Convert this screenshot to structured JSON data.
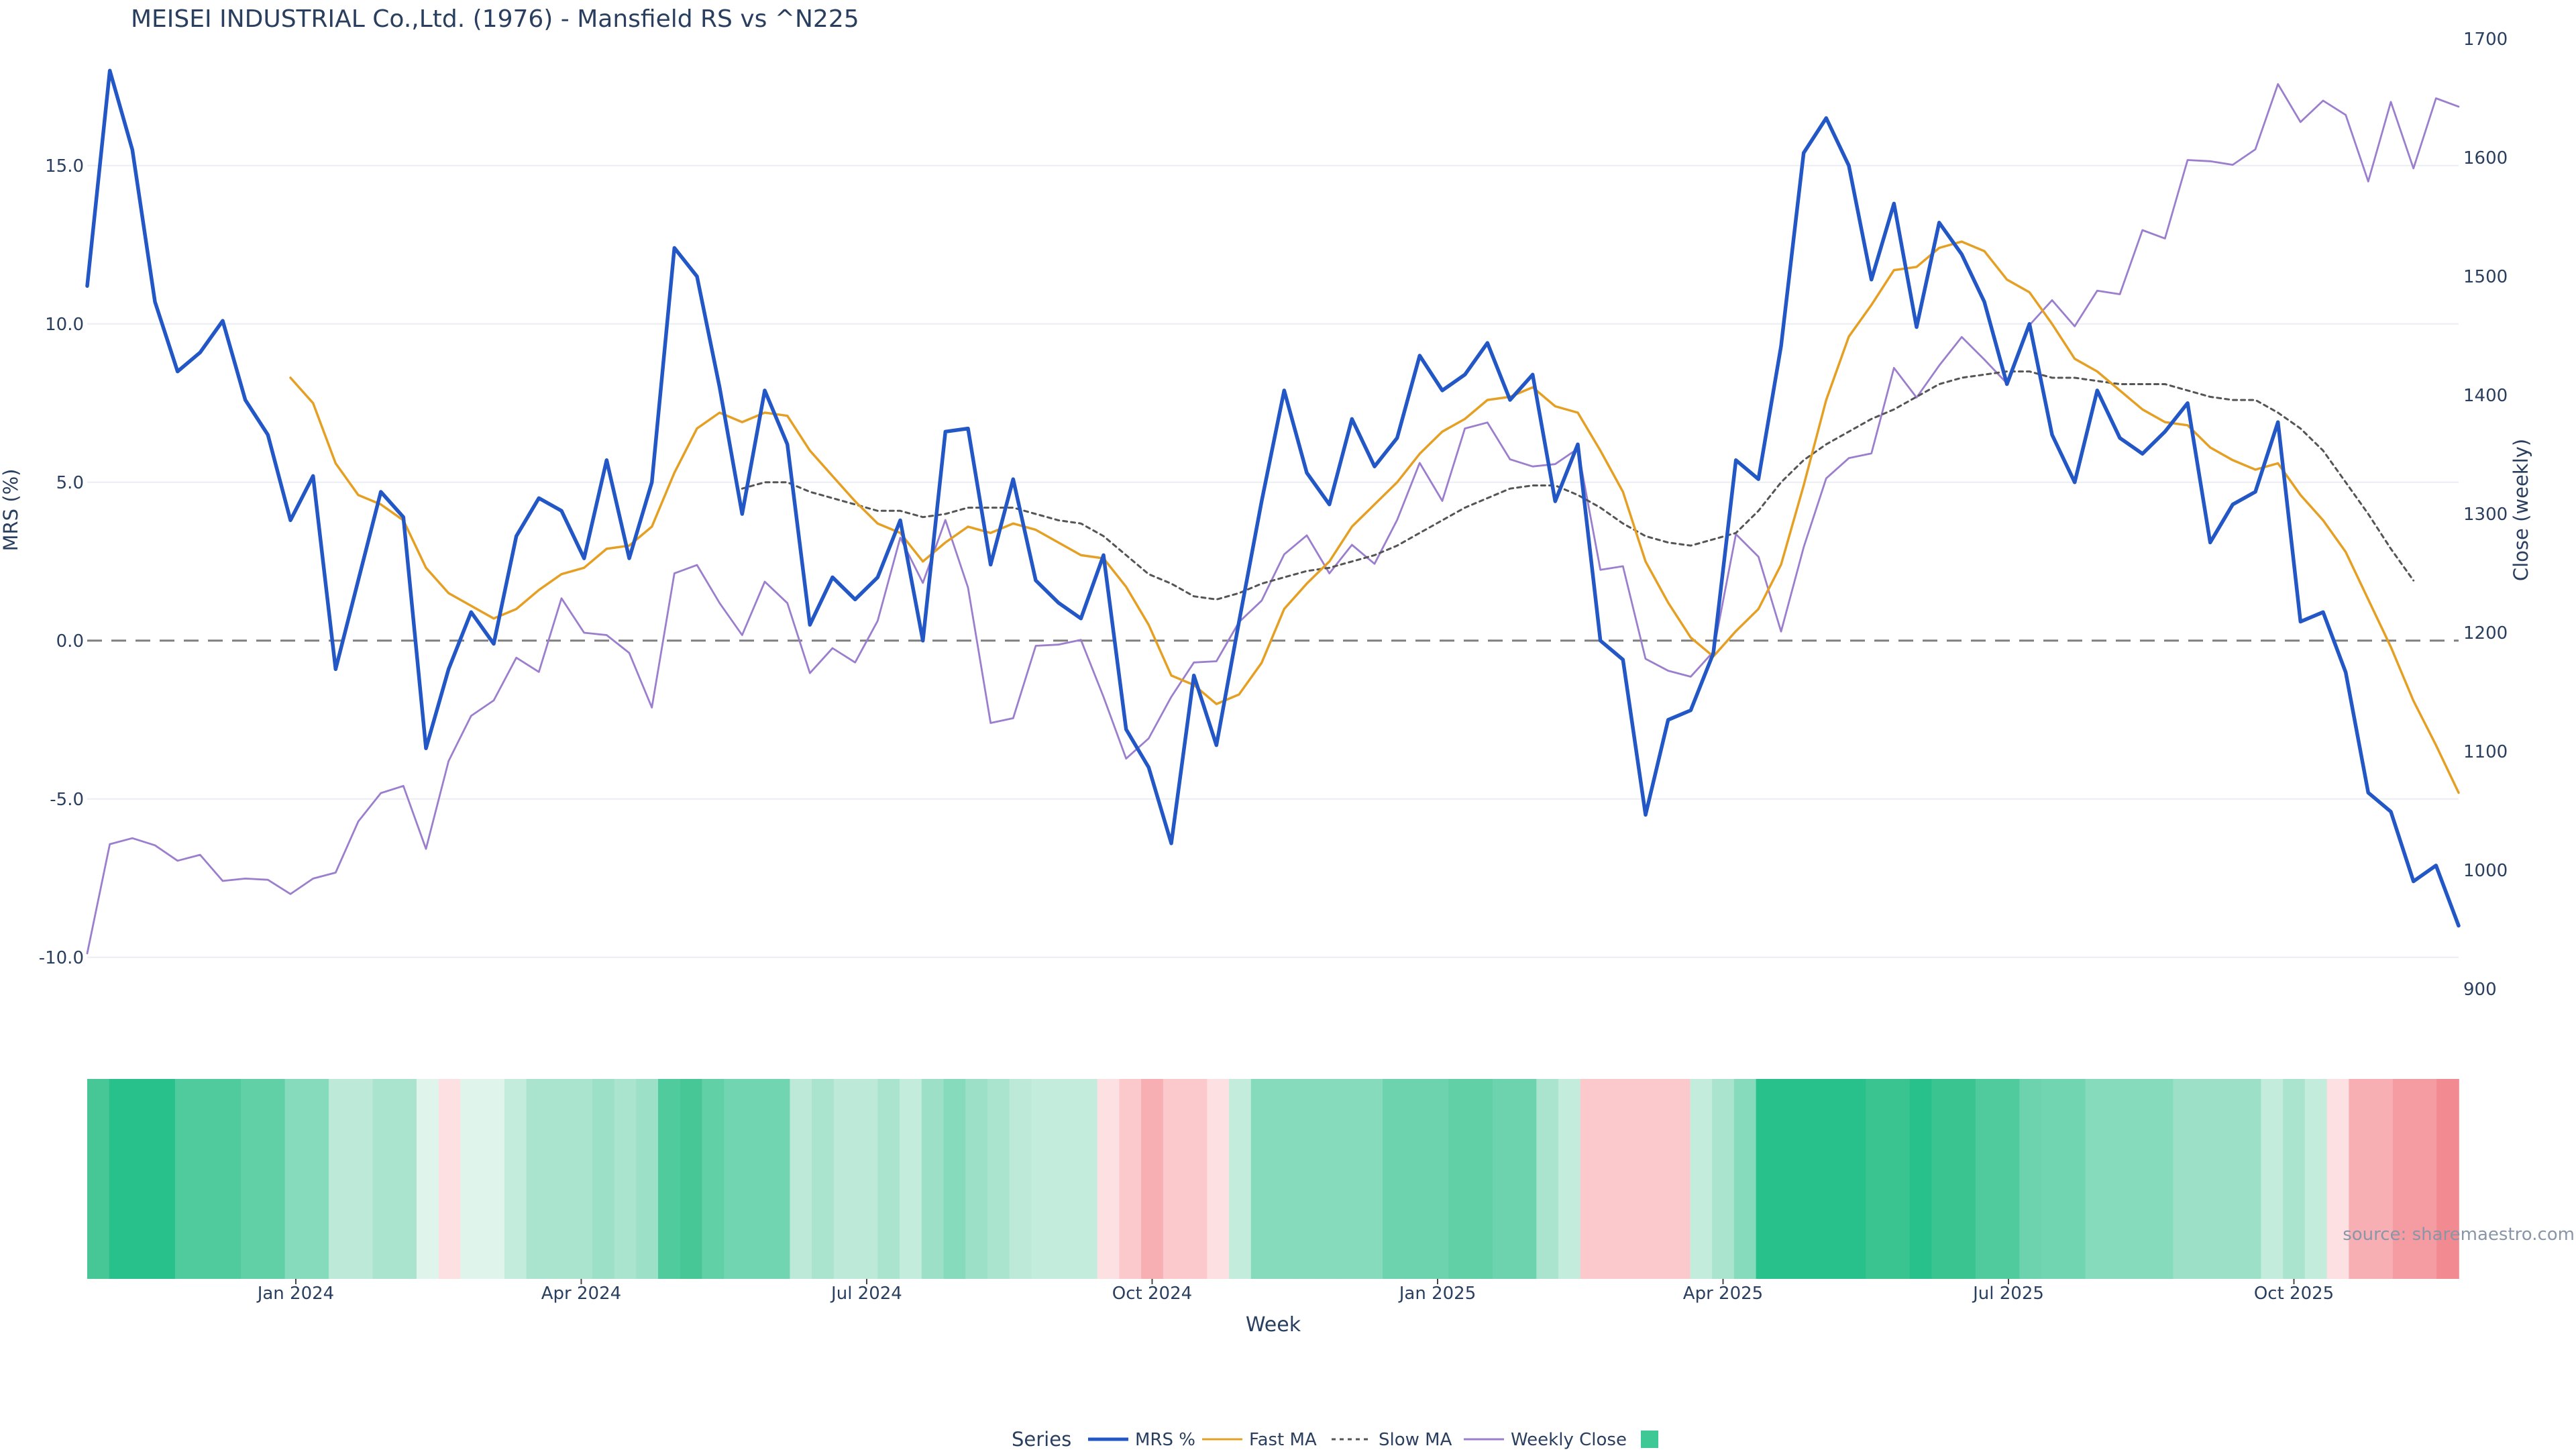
{
  "chart_data": {
    "type": "line",
    "title": "MEISEI INDUSTRIAL Co.,Ltd. (1976) - Mansfield RS vs ^N225",
    "source_note": "source: sharemaestro.com",
    "xlabel": "Week",
    "ylabel_left": "MRS (%)",
    "ylabel_right": "Close (weekly)",
    "left_ylim": [
      -11.0,
      19.0
    ],
    "right_ylim": [
      900,
      1700
    ],
    "left_ticks": [
      {
        "v": 15,
        "label": "15.0"
      },
      {
        "v": 10,
        "label": "10.0"
      },
      {
        "v": 5,
        "label": "5.0"
      },
      {
        "v": 0,
        "label": "0.0"
      },
      {
        "v": -5,
        "label": "-5.0"
      },
      {
        "v": -10,
        "label": "-10.0"
      }
    ],
    "right_ticks": [
      {
        "v": 1700,
        "label": "1700"
      },
      {
        "v": 1600,
        "label": "1600"
      },
      {
        "v": 1500,
        "label": "1500"
      },
      {
        "v": 1400,
        "label": "1400"
      },
      {
        "v": 1300,
        "label": "1300"
      },
      {
        "v": 1200,
        "label": "1200"
      },
      {
        "v": 1100,
        "label": "1100"
      },
      {
        "v": 1000,
        "label": "1000"
      },
      {
        "v": 900,
        "label": "900"
      }
    ],
    "x_ticks": [
      {
        "week": 9.5,
        "label": "Jan 2024"
      },
      {
        "week": 22.5,
        "label": "Apr 2024"
      },
      {
        "week": 35.5,
        "label": "Jul 2024"
      },
      {
        "week": 48.5,
        "label": "Oct 2024"
      },
      {
        "week": 61.5,
        "label": "Jan 2025"
      },
      {
        "week": 74.5,
        "label": "Apr 2025"
      },
      {
        "week": 87.5,
        "label": "Jul 2025"
      },
      {
        "week": 100.5,
        "label": "Oct 2025"
      }
    ],
    "grid": true,
    "legend_title": "Series",
    "legend_placement": "bottom-center",
    "series": [
      {
        "name": "MRS %",
        "color": "#2257c5",
        "style": "solid",
        "axis": "left",
        "x_start": 0,
        "values": [
          11.2,
          18.0,
          15.5,
          10.7,
          8.5,
          9.1,
          10.1,
          7.6,
          6.5,
          3.8,
          5.2,
          -0.9,
          1.9,
          4.7,
          3.9,
          -3.4,
          -0.9,
          0.9,
          -0.1,
          3.3,
          4.5,
          4.1,
          2.6,
          5.7,
          2.6,
          5.0,
          12.4,
          11.5,
          8.0,
          4.0,
          7.9,
          6.2,
          0.5,
          2.0,
          1.3,
          2.0,
          3.8,
          0.0,
          6.6,
          6.7,
          2.4,
          5.1,
          1.9,
          1.2,
          0.7,
          2.7,
          -2.8,
          -4.0,
          -6.4,
          -1.1,
          -3.3,
          0.6,
          4.4,
          7.9,
          5.3,
          4.3,
          7.0,
          5.5,
          6.4,
          9.0,
          7.9,
          8.4,
          9.4,
          7.6,
          8.4,
          4.4,
          6.2,
          0.0,
          -0.6,
          -5.5,
          -2.5,
          -2.2,
          -0.4,
          5.7,
          5.1,
          9.3,
          15.4,
          16.5,
          15.0,
          11.4,
          13.8,
          9.9,
          13.2,
          12.2,
          10.7,
          8.1,
          10.0,
          6.5,
          5.0,
          7.9,
          6.4,
          5.9,
          6.6,
          7.5,
          3.1,
          4.3,
          4.7,
          6.9,
          0.6,
          0.9,
          -1.0,
          -4.8,
          -5.4,
          -7.6,
          -7.1,
          -9.0
        ]
      },
      {
        "name": "Fast MA",
        "color": "#e5a024",
        "style": "solid",
        "axis": "left",
        "x_start": 9,
        "values": [
          8.3,
          7.5,
          5.6,
          4.6,
          4.3,
          3.8,
          2.3,
          1.5,
          1.1,
          0.7,
          1.0,
          1.6,
          2.1,
          2.3,
          2.9,
          3.0,
          3.6,
          5.3,
          6.7,
          7.2,
          6.9,
          7.2,
          7.1,
          6.0,
          5.2,
          4.4,
          3.7,
          3.4,
          2.5,
          3.1,
          3.6,
          3.4,
          3.7,
          3.5,
          3.1,
          2.7,
          2.6,
          1.7,
          0.5,
          -1.1,
          -1.4,
          -2.0,
          -1.7,
          -0.7,
          1.0,
          1.8,
          2.5,
          3.6,
          4.3,
          5.0,
          5.9,
          6.6,
          7.0,
          7.6,
          7.7,
          8.0,
          7.4,
          7.2,
          6.0,
          4.7,
          2.5,
          1.2,
          0.1,
          -0.5,
          0.3,
          1.0,
          2.4,
          4.9,
          7.6,
          9.6,
          10.6,
          11.7,
          11.8,
          12.4,
          12.6,
          12.3,
          11.4,
          11.0,
          10.0,
          8.9,
          8.5,
          7.9,
          7.3,
          6.9,
          6.8,
          6.1,
          5.7,
          5.4,
          5.6,
          4.6,
          3.8,
          2.8,
          1.3,
          -0.2,
          -1.9,
          -3.3,
          -4.8
        ]
      },
      {
        "name": "Slow MA",
        "color": "#555555",
        "style": "dotted",
        "axis": "left",
        "x_start": 29,
        "values": [
          4.8,
          5.0,
          5.0,
          4.7,
          4.5,
          4.3,
          4.1,
          4.1,
          3.9,
          4.0,
          4.2,
          4.2,
          4.2,
          4.0,
          3.8,
          3.7,
          3.3,
          2.7,
          2.1,
          1.8,
          1.4,
          1.3,
          1.5,
          1.8,
          2.0,
          2.2,
          2.3,
          2.5,
          2.7,
          3.0,
          3.4,
          3.8,
          4.2,
          4.5,
          4.8,
          4.9,
          4.9,
          4.6,
          4.2,
          3.7,
          3.3,
          3.1,
          3.0,
          3.2,
          3.4,
          4.1,
          5.0,
          5.7,
          6.2,
          6.6,
          7.0,
          7.3,
          7.7,
          8.1,
          8.3,
          8.4,
          8.5,
          8.5,
          8.3,
          8.3,
          8.2,
          8.1,
          8.1,
          8.1,
          7.9,
          7.7,
          7.6,
          7.6,
          7.2,
          6.7,
          6.0,
          5.0,
          4.0,
          2.9,
          1.9
        ]
      },
      {
        "name": "Weekly Close",
        "color": "#9b7ecd",
        "style": "solid",
        "axis": "right",
        "x_start": 0,
        "values": [
          930,
          1022,
          1027,
          1021,
          1008,
          1013,
          991,
          993,
          992,
          980,
          993,
          998,
          1041,
          1065,
          1071,
          1018,
          1092,
          1130,
          1143,
          1179,
          1167,
          1229,
          1200,
          1198,
          1183,
          1137,
          1250,
          1257,
          1225,
          1198,
          1243,
          1225,
          1166,
          1187,
          1175,
          1210,
          1280,
          1242,
          1295,
          1238,
          1124,
          1128,
          1189,
          1190,
          1194,
          1146,
          1094,
          1111,
          1146,
          1175,
          1176,
          1209,
          1227,
          1266,
          1282,
          1250,
          1274,
          1258,
          1295,
          1343,
          1311,
          1372,
          1377,
          1346,
          1340,
          1342,
          1355,
          1253,
          1256,
          1178,
          1168,
          1163,
          1184,
          1283,
          1264,
          1201,
          1272,
          1330,
          1347,
          1351,
          1423,
          1398,
          1425,
          1449,
          1430,
          1410,
          1459,
          1480,
          1458,
          1488,
          1485,
          1539,
          1532,
          1598,
          1597,
          1594,
          1607,
          1662,
          1630,
          1648,
          1636,
          1580,
          1647,
          1591,
          1650,
          1643
        ]
      }
    ],
    "heat_strip": {
      "colors": [
        "#46c795",
        "#28c08b",
        "#28c08b",
        "#28c08b",
        "#50cb9d",
        "#50cb9d",
        "#50cb9d",
        "#62d0a7",
        "#62d0a7",
        "#86dbbc",
        "#86dbbc",
        "#bce9d8",
        "#bce9d8",
        "#aae4cf",
        "#aae4cf",
        "#dff5ec",
        "#fde0e2",
        "#dff5ec",
        "#dff5ec",
        "#c4ecdd",
        "#aae4cf",
        "#aae4cf",
        "#aae4cf",
        "#9ce0c7",
        "#aae4cf",
        "#9ce0c7",
        "#50cb9d",
        "#46c795",
        "#62d0a7",
        "#72d5b1",
        "#72d5b1",
        "#72d5b1",
        "#bce9d8",
        "#aae4cf",
        "#bce9d8",
        "#bce9d8",
        "#aae4cf",
        "#c4ecdd",
        "#9ce0c7",
        "#86dbbc",
        "#9ce0c7",
        "#aae4cf",
        "#bce9d8",
        "#c4ecdd",
        "#c4ecdd",
        "#c4ecdd",
        "#fde0e2",
        "#fbc9cc",
        "#f8afb4",
        "#fbc9cc",
        "#fbc9cc",
        "#fde0e2",
        "#c4ecdd",
        "#86dbbc",
        "#86dbbc",
        "#86dbbc",
        "#86dbbc",
        "#86dbbc",
        "#86dbbc",
        "#6dd3ae",
        "#6dd3ae",
        "#6dd3ae",
        "#62d0a7",
        "#62d0a7",
        "#6dd3ae",
        "#6dd3ae",
        "#aae4cf",
        "#c4ecdd",
        "#fbc9cc",
        "#fbc9cc",
        "#fbc9cc",
        "#fbc9cc",
        "#fbc9cc",
        "#c4ecdd",
        "#aae4cf",
        "#86dbbc",
        "#28c08b",
        "#28c08b",
        "#28c08b",
        "#28c08b",
        "#28c08b",
        "#3ac490",
        "#3ac490",
        "#28c08b",
        "#3ac490",
        "#3ac490",
        "#50cb9d",
        "#50cb9d",
        "#6dd3ae",
        "#72d5b1",
        "#72d5b1",
        "#86dbbc",
        "#86dbbc",
        "#86dbbc",
        "#86dbbc",
        "#9ce0c7",
        "#9ce0c7",
        "#9ce0c7",
        "#9ce0c7",
        "#c4ecdd",
        "#aae4cf",
        "#c4ecdd",
        "#fde0e2",
        "#f8afb4",
        "#f8afb4",
        "#f49ca2",
        "#f49ca2",
        "#f28a91"
      ]
    }
  }
}
